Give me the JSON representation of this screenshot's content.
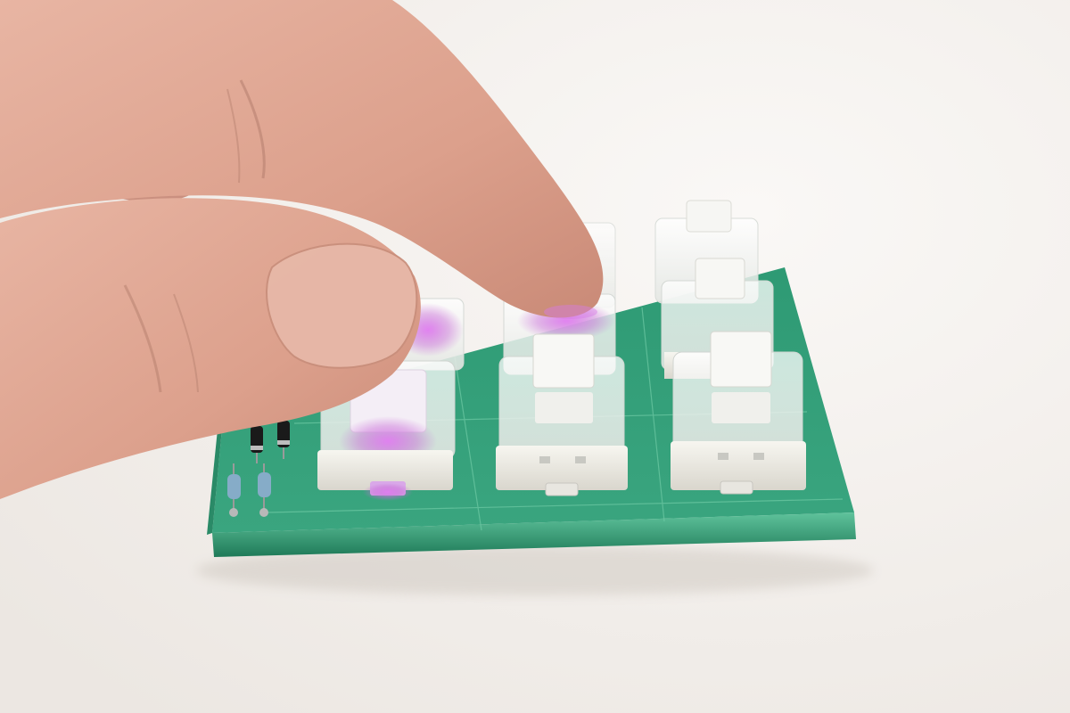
{
  "scene": {
    "subject": "pcb-keypad",
    "colors": {
      "background": "#f3f0ed",
      "pcb": "#2f9e78",
      "pcb_dark": "#1f7d5c",
      "pcb_edge": "#54b892",
      "switch_housing": "#f2f1ec",
      "switch_clear": "#e8ecea",
      "stem": "#fafaf7",
      "led_glow": "#d36ee6",
      "skin": "#e0a896",
      "skin_shadow": "#b97a6a",
      "resistor_blue": "#7fa9c9",
      "diode_black": "#1a1a1a"
    },
    "grid": {
      "rows": 3,
      "cols": 3,
      "lit_switches": [
        [
          2,
          0
        ],
        [
          1,
          1
        ]
      ]
    }
  }
}
